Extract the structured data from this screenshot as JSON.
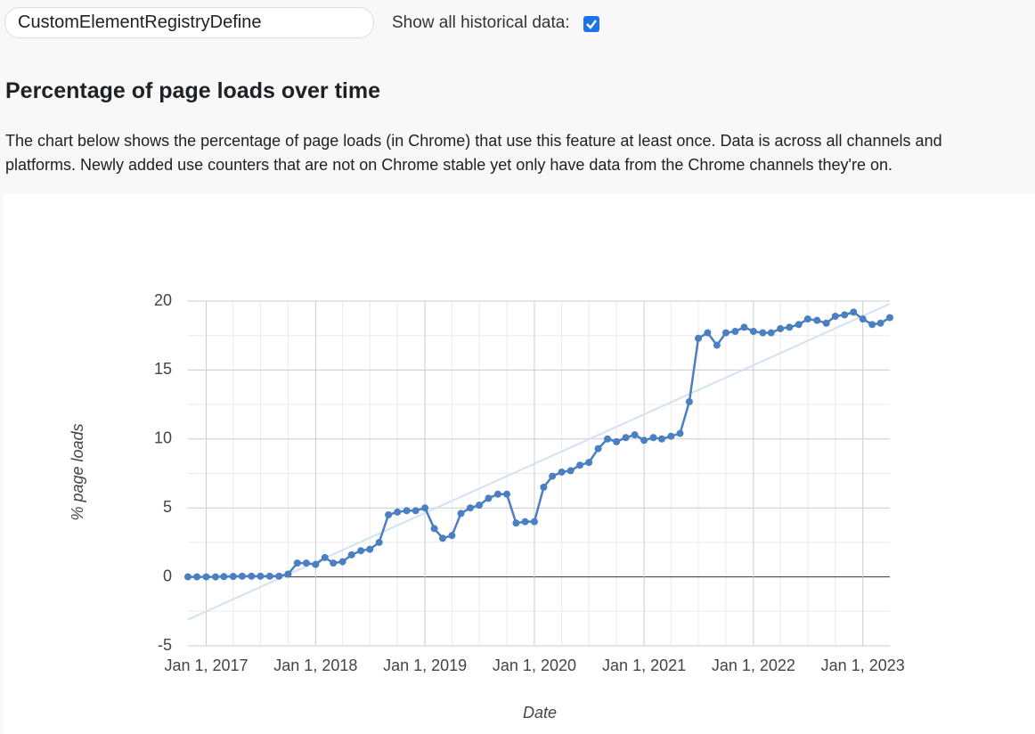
{
  "header": {
    "search": "CustomElementRegistryDefine",
    "checkbox_label": "Show all historical data:",
    "checked": true
  },
  "section": {
    "title": "Percentage of page loads over time",
    "description": [
      "The chart below shows the percentage of page loads (in Chrome) that use this feature at least once. Data is across all channels and",
      "platforms. Newly added use counters that are not on Chrome stable yet only have data from the Chrome channels they're on."
    ]
  },
  "chart_data": {
    "type": "line",
    "xlabel": "Date",
    "ylabel": "% page loads",
    "x": [
      "2016-11-01",
      "2016-12-01",
      "2017-01-01",
      "2017-02-01",
      "2017-03-01",
      "2017-04-01",
      "2017-05-01",
      "2017-06-01",
      "2017-07-01",
      "2017-08-01",
      "2017-09-01",
      "2017-10-01",
      "2017-11-01",
      "2017-12-01",
      "2018-01-01",
      "2018-02-01",
      "2018-03-01",
      "2018-04-01",
      "2018-05-01",
      "2018-06-01",
      "2018-07-01",
      "2018-08-01",
      "2018-09-01",
      "2018-10-01",
      "2018-11-01",
      "2018-12-01",
      "2019-01-01",
      "2019-02-01",
      "2019-03-01",
      "2019-04-01",
      "2019-05-01",
      "2019-06-01",
      "2019-07-01",
      "2019-08-01",
      "2019-09-01",
      "2019-10-01",
      "2019-11-01",
      "2019-12-01",
      "2020-01-01",
      "2020-02-01",
      "2020-03-01",
      "2020-04-01",
      "2020-05-01",
      "2020-06-01",
      "2020-07-01",
      "2020-08-01",
      "2020-09-01",
      "2020-10-01",
      "2020-11-01",
      "2020-12-01",
      "2021-01-01",
      "2021-02-01",
      "2021-03-01",
      "2021-04-01",
      "2021-05-01",
      "2021-06-01",
      "2021-07-01",
      "2021-08-01",
      "2021-09-01",
      "2021-10-01",
      "2021-11-01",
      "2021-12-01",
      "2022-01-01",
      "2022-02-01",
      "2022-03-01",
      "2022-04-01",
      "2022-05-01",
      "2022-06-01",
      "2022-07-01",
      "2022-08-01",
      "2022-09-01",
      "2022-10-01",
      "2022-11-01",
      "2022-12-01",
      "2023-01-01",
      "2023-02-01",
      "2023-03-01",
      "2023-04-01"
    ],
    "series": [
      {
        "color": "#4a7fc1",
        "values": [
          0,
          0,
          0,
          0,
          0.02,
          0.03,
          0.05,
          0.05,
          0.05,
          0.05,
          0.05,
          0.2,
          1.0,
          1.0,
          0.9,
          1.4,
          1.0,
          1.1,
          1.6,
          1.9,
          2.0,
          2.5,
          4.5,
          4.7,
          4.8,
          4.8,
          5.0,
          3.5,
          2.8,
          3.0,
          4.6,
          5.0,
          5.2,
          5.7,
          6.0,
          6.0,
          3.9,
          4.0,
          4.0,
          6.5,
          7.3,
          7.6,
          7.7,
          8.1,
          8.3,
          9.3,
          10.0,
          9.8,
          10.1,
          10.3,
          9.9,
          10.1,
          10.0,
          10.2,
          10.4,
          12.7,
          17.3,
          17.7,
          16.8,
          17.7,
          17.8,
          18.1,
          17.8,
          17.7,
          17.7,
          18.0,
          18.1,
          18.3,
          18.7,
          18.6,
          18.4,
          18.9,
          19.0,
          19.2,
          18.7,
          18.3,
          18.4,
          18.8
        ]
      }
    ],
    "trendline": {
      "x": [
        "2016-11-01",
        "2023-04-01"
      ],
      "values": [
        -3.1,
        19.8
      ],
      "color": "#d3e2f3"
    },
    "xlim": [
      "2016-11-01",
      "2023-04-01"
    ],
    "xticks": [
      {
        "value": "2017-01-01",
        "label": "Jan 1, 2017"
      },
      {
        "value": "2018-01-01",
        "label": "Jan 1, 2018"
      },
      {
        "value": "2019-01-01",
        "label": "Jan 1, 2019"
      },
      {
        "value": "2020-01-01",
        "label": "Jan 1, 2020"
      },
      {
        "value": "2021-01-01",
        "label": "Jan 1, 2021"
      },
      {
        "value": "2022-01-01",
        "label": "Jan 1, 2022"
      },
      {
        "value": "2023-01-01",
        "label": "Jan 1, 2023"
      }
    ],
    "xticks_minor": [
      "2017-04-01",
      "2017-07-01",
      "2017-10-01",
      "2018-04-01",
      "2018-07-01",
      "2018-10-01",
      "2019-04-01",
      "2019-07-01",
      "2019-10-01",
      "2020-04-01",
      "2020-07-01",
      "2020-10-01",
      "2021-04-01",
      "2021-07-01",
      "2021-10-01",
      "2022-04-01",
      "2022-07-01",
      "2022-10-01"
    ],
    "ylim": [
      -5,
      20
    ],
    "yticks": [
      -5,
      0,
      5,
      10,
      15,
      20
    ],
    "yticks_minor": [
      -2.5,
      2.5,
      7.5,
      12.5,
      17.5
    ],
    "grid": true
  }
}
